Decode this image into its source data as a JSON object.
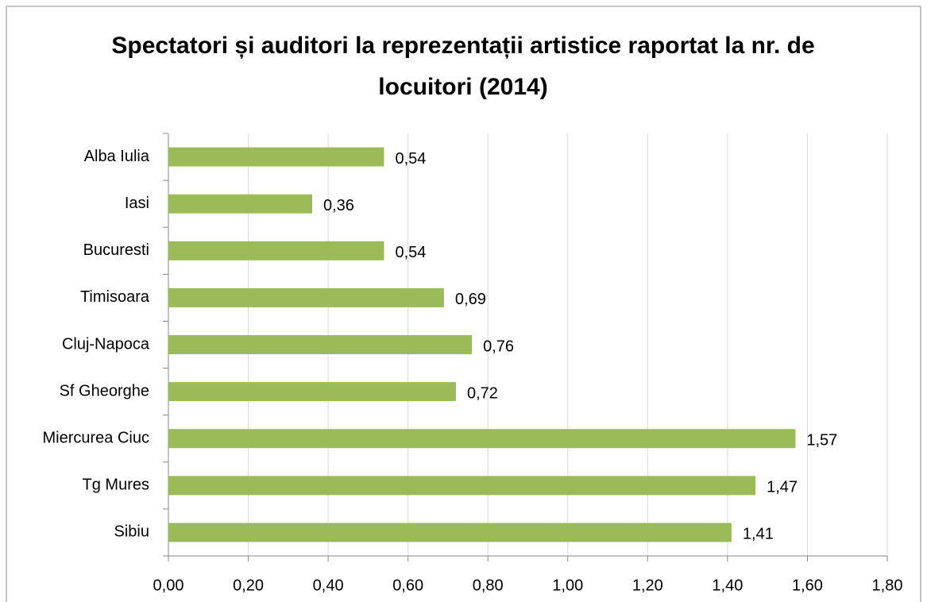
{
  "chart_data": {
    "type": "hbar",
    "title": "Spectatori și auditori la reprezentații artistice raportat la nr. de locuitori (2014)",
    "categories": [
      "Alba Iulia",
      "Iasi",
      "Bucuresti",
      "Timisoara",
      "Cluj-Napoca",
      "Sf Gheorghe",
      "Miercurea Ciuc",
      "Tg Mures",
      "Sibiu"
    ],
    "values": [
      0.54,
      0.36,
      0.54,
      0.69,
      0.76,
      0.72,
      1.57,
      1.47,
      1.41
    ],
    "value_labels": [
      "0,54",
      "0,36",
      "0,54",
      "0,69",
      "0,76",
      "0,72",
      "1,57",
      "1,47",
      "1,41"
    ],
    "color": "#9bbb59",
    "xlim": [
      0,
      1.8
    ],
    "xticks": [
      {
        "value": 0,
        "label": "0,00"
      },
      {
        "value": 0.2,
        "label": "0,20"
      },
      {
        "value": 0.4,
        "label": "0,40"
      },
      {
        "value": 0.6,
        "label": "0,60"
      },
      {
        "value": 0.8,
        "label": "0,80"
      },
      {
        "value": 1.0,
        "label": "1,00"
      },
      {
        "value": 1.2,
        "label": "1,20"
      },
      {
        "value": 1.4,
        "label": "1,40"
      },
      {
        "value": 1.6,
        "label": "1,60"
      },
      {
        "value": 1.8,
        "label": "1,80"
      }
    ],
    "grid": true
  }
}
